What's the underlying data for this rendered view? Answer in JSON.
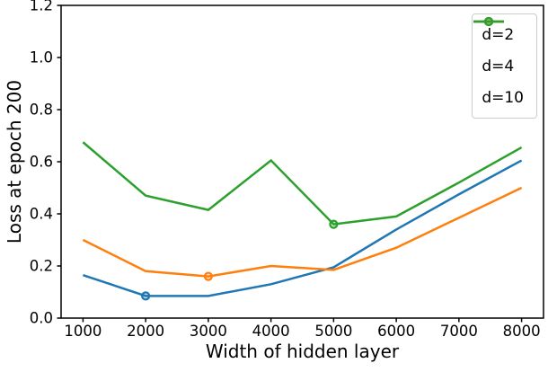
{
  "chart_data": {
    "type": "line",
    "title": "",
    "xlabel": "Width of hidden layer",
    "ylabel": "Loss at epoch 200",
    "x": [
      1000,
      2000,
      3000,
      4000,
      5000,
      6000,
      7000,
      8000
    ],
    "series": [
      {
        "name": "d=2",
        "color": "#1f77b4",
        "values": [
          0.165,
          0.085,
          0.085,
          0.13,
          0.195,
          0.34,
          0.475,
          0.605
        ],
        "marker_at": [
          2000
        ]
      },
      {
        "name": "d=4",
        "color": "#ff7f0e",
        "values": [
          0.3,
          0.18,
          0.16,
          0.2,
          0.185,
          0.27,
          0.385,
          0.5
        ],
        "marker_at": [
          3000
        ]
      },
      {
        "name": "d=10",
        "color": "#2ca02c",
        "values": [
          0.675,
          0.47,
          0.415,
          0.605,
          0.36,
          0.39,
          0.52,
          0.655
        ],
        "marker_at": [
          5000
        ]
      }
    ],
    "xlim": [
      650,
      8350
    ],
    "ylim": [
      0,
      1.2
    ],
    "x_tick_labels": [
      "1000",
      "2000",
      "3000",
      "4000",
      "5000",
      "6000",
      "7000",
      "8000"
    ],
    "y_tick_labels": [
      "0.0",
      "0.2",
      "0.4",
      "0.6",
      "0.8",
      "1.0",
      "1.2"
    ],
    "grid": false,
    "legend_position": "top-right",
    "axis_color": "#000000",
    "background": "#ffffff"
  }
}
